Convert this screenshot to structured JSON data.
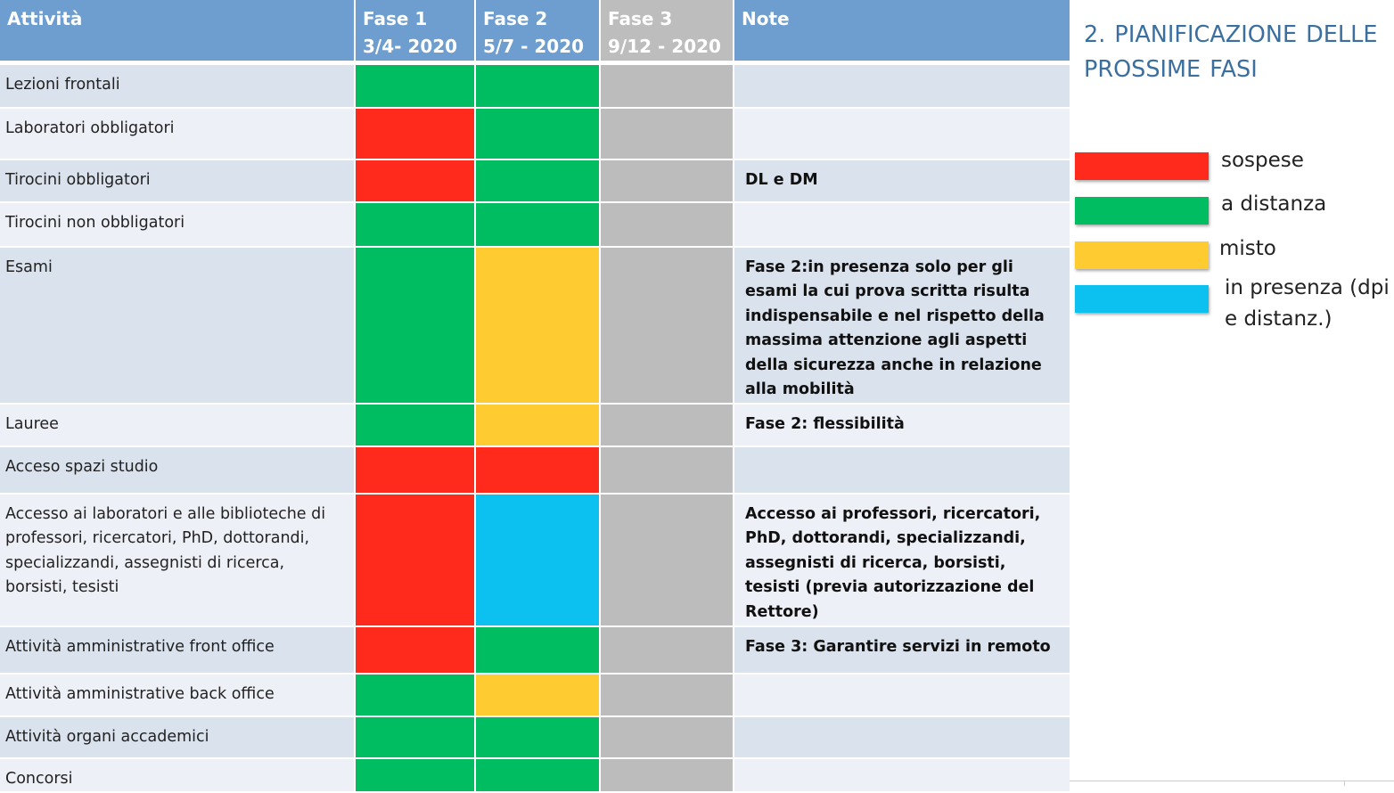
{
  "colors": {
    "sospese": "#ff2a1c",
    "a_distanza": "#00bd62",
    "misto": "#fecb30",
    "in_presenza": "#0cc1f0",
    "fase3": "#bcbcbc"
  },
  "header": {
    "attivita": "Attività",
    "fase1_name": "Fase 1",
    "fase1_date": "3/4- 2020",
    "fase2_name": "Fase 2",
    "fase2_date": "5/7 - 2020",
    "fase3_name": "Fase 3",
    "fase3_date": "9/12 - 2020",
    "note": "Note"
  },
  "side": {
    "title": "2. PIANIFICAZIONE DELLE PROSSIME FASI"
  },
  "legend": [
    {
      "key": "sospese",
      "label": "sospese"
    },
    {
      "key": "a_distanza",
      "label": "a distanza"
    },
    {
      "key": "misto",
      "label": "misto"
    },
    {
      "key": "in_presenza",
      "label": "in presenza (dpi e distanz.)"
    }
  ],
  "rows": [
    {
      "activity": "Lezioni frontali",
      "fase1": "a_distanza",
      "fase2": "a_distanza",
      "fase3": "fase3",
      "note": ""
    },
    {
      "activity": "Laboratori obbligatori",
      "fase1": "sospese",
      "fase2": "a_distanza",
      "fase3": "fase3",
      "note": ""
    },
    {
      "activity": "Tirocini obbligatori",
      "fase1": "sospese",
      "fase2": "a_distanza",
      "fase3": "fase3",
      "note": "DL e DM"
    },
    {
      "activity": "Tirocini non obbligatori",
      "fase1": "a_distanza",
      "fase2": "a_distanza",
      "fase3": "fase3",
      "note": ""
    },
    {
      "activity": "Esami",
      "fase1": "a_distanza",
      "fase2": "misto",
      "fase3": "fase3",
      "note": "Fase 2:in presenza solo per gli esami la cui prova scritta risulta indispensabile e nel rispetto della massima attenzione agli aspetti della sicurezza anche in relazione alla mobilità"
    },
    {
      "activity": "Lauree",
      "fase1": "a_distanza",
      "fase2": "misto",
      "fase3": "fase3",
      "note": "Fase 2: flessibilità"
    },
    {
      "activity": "Acceso spazi studio",
      "fase1": "sospese",
      "fase2": "sospese",
      "fase3": "fase3",
      "note": ""
    },
    {
      "activity": "Accesso ai laboratori e alle biblioteche di professori, ricercatori, PhD, dottorandi, specializzandi, assegnisti di ricerca, borsisti, tesisti",
      "fase1": "sospese",
      "fase2": "in_presenza",
      "fase3": "fase3",
      "note": "Accesso ai professori, ricercatori, PhD, dottorandi, specializzandi, assegnisti di ricerca, borsisti, tesisti (previa autorizzazione del Rettore)"
    },
    {
      "activity": "Attività amministrative front office",
      "fase1": "sospese",
      "fase2": "a_distanza",
      "fase3": "fase3",
      "note": "Fase 3: Garantire servizi in remoto"
    },
    {
      "activity": "Attività amministrative back office",
      "fase1": "a_distanza",
      "fase2": "misto",
      "fase3": "fase3",
      "note": ""
    },
    {
      "activity": "Attività organi accademici",
      "fase1": "a_distanza",
      "fase2": "a_distanza",
      "fase3": "fase3",
      "note": ""
    },
    {
      "activity": "Concorsi",
      "fase1": "a_distanza",
      "fase2": "a_distanza",
      "fase3": "fase3",
      "note": ""
    }
  ]
}
